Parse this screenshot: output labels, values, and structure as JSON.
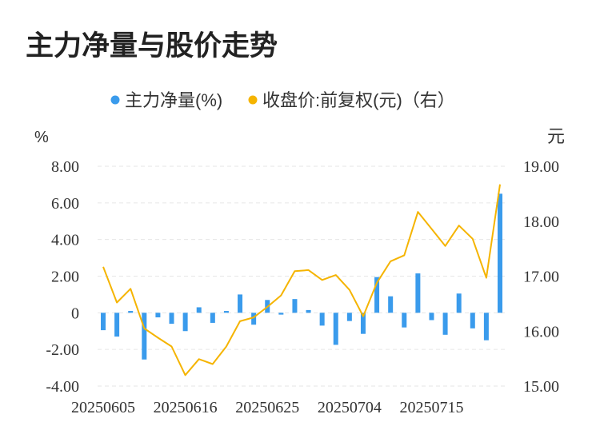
{
  "colors": {
    "bar": "#3a9bec",
    "line": "#f5b400",
    "grid": "#e6e6e6",
    "text": "#333333",
    "title": "#222222"
  },
  "chart_data": {
    "type": "bar+line",
    "title": "主力净量与股价走势",
    "legend": [
      {
        "name": "主力净量(%)",
        "color": "#3a9bec"
      },
      {
        "name": "收盘价:前复权(元)（右）",
        "color": "#f5b400"
      }
    ],
    "left_axis_unit": "%",
    "right_axis_unit": "元",
    "left_ticks": [
      "8.00",
      "6.00",
      "4.00",
      "2.00",
      "0",
      "-2.00",
      "-4.00"
    ],
    "right_ticks": [
      "19.00",
      "18.00",
      "17.00",
      "16.00",
      "15.00"
    ],
    "x_tick_labels": [
      "20250605",
      "20250616",
      "20250625",
      "20250704",
      "20250715"
    ],
    "ylim_left": [
      -4,
      8
    ],
    "ylim_right": [
      15,
      19
    ],
    "grid": true,
    "legend_position": "top",
    "series": [
      {
        "name": "主力净量(%)",
        "type": "bar",
        "values": [
          -0.95,
          -1.3,
          0.1,
          -2.55,
          -0.25,
          -0.6,
          -1.0,
          0.3,
          -0.55,
          0.1,
          1.0,
          -0.65,
          0.7,
          -0.1,
          0.75,
          0.15,
          -0.7,
          -1.75,
          -0.45,
          -1.15,
          1.95,
          0.9,
          -0.8,
          2.15,
          -0.4,
          -1.2,
          1.05,
          -0.85,
          -1.5,
          6.5
        ]
      },
      {
        "name": "收盘价:前复权(元)（右）",
        "type": "line",
        "values": [
          17.17,
          16.52,
          16.77,
          16.05,
          15.88,
          15.72,
          15.2,
          15.49,
          15.4,
          15.72,
          16.18,
          16.25,
          16.44,
          16.65,
          17.09,
          17.11,
          16.93,
          17.02,
          16.75,
          16.27,
          16.88,
          17.27,
          17.38,
          18.17,
          17.86,
          17.55,
          17.92,
          17.68,
          16.97,
          18.67
        ]
      }
    ]
  }
}
